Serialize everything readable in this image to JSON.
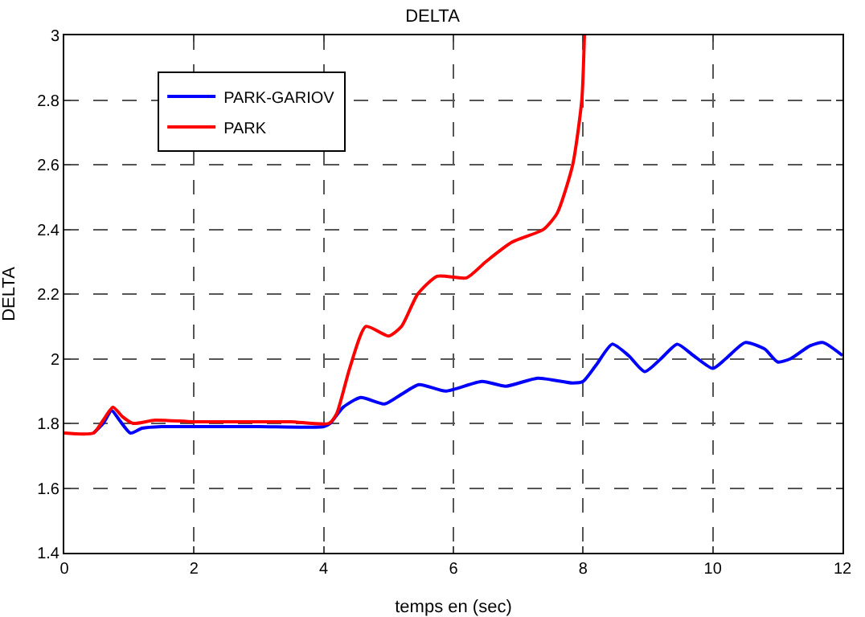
{
  "chart_data": {
    "type": "line",
    "title": "DELTA",
    "xlabel": "temps en (sec)",
    "ylabel": "DELTA",
    "xlim": [
      0,
      12
    ],
    "ylim": [
      1.4,
      3
    ],
    "xticks": [
      0,
      2,
      4,
      6,
      8,
      10,
      12
    ],
    "yticks": [
      1.4,
      1.6,
      1.8,
      2,
      2.2,
      2.4,
      2.6,
      2.8,
      3
    ],
    "grid": true,
    "legend": "top left",
    "line_style": "solid",
    "marker": "none",
    "series": [
      {
        "name": "PARK-GARIOV",
        "color": "#0000ff",
        "x": [
          0.45,
          0.6,
          0.73,
          0.85,
          1.02,
          1.2,
          1.5,
          2,
          3,
          4,
          4.1,
          4.3,
          4.57,
          4.94,
          5.2,
          5.47,
          5.88,
          6.44,
          6.81,
          7.3,
          7.84,
          8.0,
          8.2,
          8.45,
          8.7,
          8.95,
          9.2,
          9.45,
          9.7,
          10.0,
          10.2,
          10.5,
          10.8,
          11.0,
          11.2,
          11.5,
          11.7,
          12
        ],
        "values": [
          1.77,
          1.8,
          1.84,
          1.81,
          1.77,
          1.785,
          1.79,
          1.79,
          1.79,
          1.79,
          1.8,
          1.85,
          1.88,
          1.86,
          1.89,
          1.92,
          1.9,
          1.93,
          1.915,
          1.94,
          1.925,
          1.93,
          1.98,
          2.045,
          2.01,
          1.96,
          2,
          2.045,
          2.01,
          1.97,
          2,
          2.05,
          2.03,
          1.99,
          2,
          2.04,
          2.05,
          2.01
        ]
      },
      {
        "name": "PARK",
        "color": "#ff0000",
        "x": [
          0,
          0.45,
          0.6,
          0.75,
          0.9,
          1.06,
          1.4,
          2,
          3,
          3.5,
          4.08,
          4.2,
          4.4,
          4.65,
          5.0,
          5.2,
          5.45,
          5.75,
          6.2,
          6.5,
          6.9,
          7.39,
          7.6,
          7.84,
          7.98,
          8.02
        ],
        "values": [
          1.77,
          1.77,
          1.81,
          1.85,
          1.82,
          1.8,
          1.81,
          1.805,
          1.805,
          1.805,
          1.8,
          1.83,
          1.97,
          2.1,
          2.07,
          2.1,
          2.2,
          2.255,
          2.25,
          2.3,
          2.36,
          2.4,
          2.45,
          2.6,
          2.8,
          3
        ]
      }
    ]
  }
}
